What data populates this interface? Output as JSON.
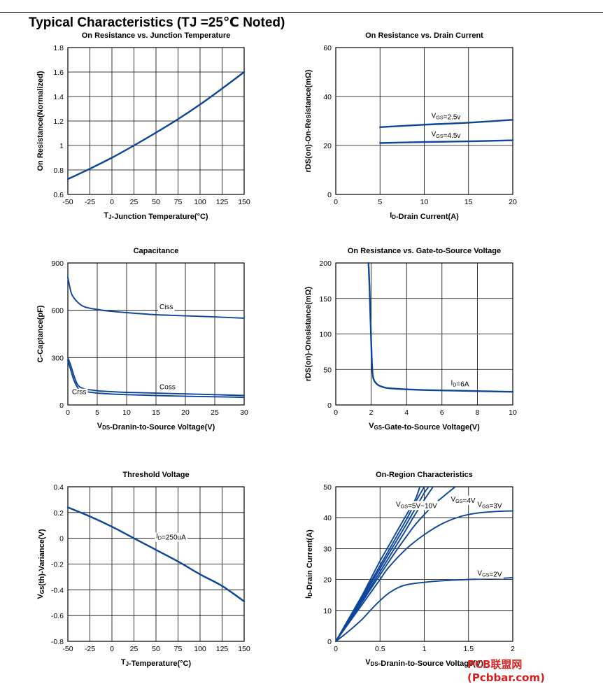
{
  "page": {
    "title": "Typical Characteristics (TJ =25℃ Noted)",
    "watermark": "PCB联盟网 (Pcbbar.com)"
  },
  "colors": {
    "curve": "#0d4599",
    "watermark": "#d62020"
  },
  "chart_data": [
    {
      "id": "c1",
      "type": "line",
      "title": "On Resistance vs. Junction Temperature",
      "xlabel": "TJ-Junction Temperature(°C)",
      "ylabel": "On Resistance(Normalized)",
      "xlim": [
        -50,
        150
      ],
      "ylim": [
        0.6,
        1.8
      ],
      "xticks": [
        -50,
        -25,
        0,
        25,
        50,
        75,
        100,
        125,
        150
      ],
      "xtick_labels": [
        "-50",
        "-25",
        "0",
        "25",
        "50",
        "75",
        "100",
        "125",
        "150"
      ],
      "yticks": [
        0.6,
        0.8,
        1.0,
        1.2,
        1.4,
        1.6,
        1.8
      ],
      "ytick_labels": [
        "0.6",
        "0.8",
        "1",
        "1.2",
        "1.4",
        "1.6",
        "1.8"
      ],
      "grid": true,
      "annotations": [],
      "series": [
        {
          "x": [
            -50,
            -25,
            0,
            25,
            50,
            75,
            100,
            125,
            150
          ],
          "y": [
            0.725,
            0.81,
            0.9,
            1.0,
            1.105,
            1.215,
            1.335,
            1.465,
            1.6
          ]
        }
      ]
    },
    {
      "id": "c2",
      "type": "line",
      "title": "On Resistance vs. Drain Current",
      "xlabel": "ID-Drain Current(A)",
      "ylabel": "rDS(on)-On-Resistance(mΩ)",
      "xlim": [
        0,
        20
      ],
      "ylim": [
        0,
        60
      ],
      "xticks": [
        0,
        5,
        10,
        15,
        20
      ],
      "xtick_labels": [
        "0",
        "5",
        "10",
        "15",
        "20"
      ],
      "yticks": [
        0,
        20,
        40,
        60
      ],
      "ytick_labels": [
        "0",
        "20",
        "40",
        "60"
      ],
      "grid": true,
      "annotations": [
        {
          "text": "VGS=2.5v",
          "x": 10.8,
          "y": 31.3
        },
        {
          "text": "VGS=4.5v",
          "x": 10.8,
          "y": 23.7
        }
      ],
      "series": [
        {
          "x": [
            5,
            10,
            15,
            20
          ],
          "y": [
            27.5,
            28.5,
            29.3,
            30.5
          ]
        },
        {
          "x": [
            5,
            10,
            15,
            20
          ],
          "y": [
            21.0,
            21.4,
            21.7,
            22.1
          ]
        }
      ]
    },
    {
      "id": "c3",
      "type": "line",
      "title": "Capacitance",
      "xlabel": "VDS-Dranin-to-Source Voltage(V)",
      "ylabel": "C-Captance(pF)",
      "xlim": [
        0,
        30
      ],
      "ylim": [
        0,
        900
      ],
      "xticks": [
        0,
        5,
        10,
        15,
        20,
        25,
        30
      ],
      "xtick_labels": [
        "0",
        "5",
        "10",
        "15",
        "20",
        "25",
        "30"
      ],
      "yticks": [
        0,
        300,
        600,
        900
      ],
      "ytick_labels": [
        "0",
        "300",
        "600",
        "900"
      ],
      "grid": true,
      "annotations": [
        {
          "text": "Ciss",
          "x": 15.6,
          "y": 607
        },
        {
          "text": "Coss",
          "x": 15.6,
          "y": 100
        },
        {
          "text": "Crss",
          "x": 0.7,
          "y": 68
        }
      ],
      "series": [
        {
          "x": [
            0,
            0.5,
            1,
            2,
            3,
            5,
            7,
            10,
            15,
            20,
            25,
            30
          ],
          "y": [
            810,
            720,
            680,
            640,
            620,
            605,
            595,
            585,
            572,
            565,
            558,
            550
          ]
        },
        {
          "x": [
            0,
            0.5,
            1,
            1.5,
            2,
            3,
            4,
            5,
            7,
            10,
            15,
            20,
            25,
            30
          ],
          "y": [
            300,
            250,
            190,
            140,
            115,
            100,
            95,
            90,
            85,
            80,
            75,
            70,
            65,
            60
          ]
        },
        {
          "x": [
            0,
            0.5,
            1,
            1.5,
            2,
            3,
            4,
            5,
            7,
            10,
            15,
            20,
            25,
            30
          ],
          "y": [
            280,
            220,
            160,
            120,
            95,
            85,
            80,
            75,
            70,
            65,
            60,
            55,
            52,
            48
          ]
        }
      ]
    },
    {
      "id": "c4",
      "type": "line",
      "title": "On Resistance vs. Gate-to-Source Voltage",
      "xlabel": "VGS-Gate-to-Source Voltage(V)",
      "ylabel": "rDS(on)-Onesistance(mΩ)",
      "xlim": [
        0,
        10
      ],
      "ylim": [
        0,
        200
      ],
      "xticks": [
        0,
        2,
        4,
        6,
        8,
        10
      ],
      "xtick_labels": [
        "0",
        "2",
        "4",
        "6",
        "8",
        "10"
      ],
      "yticks": [
        0,
        50,
        100,
        150,
        200
      ],
      "ytick_labels": [
        "0",
        "50",
        "100",
        "150",
        "200"
      ],
      "grid": true,
      "annotations": [
        {
          "text": "ID=6A",
          "x": 6.5,
          "y": 28
        }
      ],
      "series": [
        {
          "x": [
            1.85,
            1.9,
            1.95,
            2.0,
            2.05,
            2.1,
            2.2,
            2.4,
            2.7,
            3,
            4,
            5,
            6,
            7,
            8,
            9,
            10
          ],
          "y": [
            200,
            170,
            130,
            90,
            55,
            40,
            33,
            28,
            25,
            23.5,
            22,
            21,
            20.5,
            20,
            19.5,
            19,
            18.5
          ]
        }
      ]
    },
    {
      "id": "c5",
      "type": "line",
      "title": "Threshold Voltage",
      "xlabel": "TJ-Temperature(°C)",
      "ylabel": "VGS(th)-Variance(V)",
      "xlim": [
        -50,
        150
      ],
      "ylim": [
        -0.8,
        0.4
      ],
      "xticks": [
        -50,
        -25,
        0,
        25,
        50,
        75,
        100,
        125,
        150
      ],
      "xtick_labels": [
        "-50",
        "-25",
        "0",
        "25",
        "50",
        "75",
        "100",
        "125",
        "150"
      ],
      "yticks": [
        -0.8,
        -0.6,
        -0.4,
        -0.2,
        0,
        0.2,
        0.4
      ],
      "ytick_labels": [
        "-0.8",
        "-0.6",
        "-0.4",
        "-0.2",
        "0",
        "0.2",
        "0.4"
      ],
      "grid": true,
      "annotations": [
        {
          "text": "ID=250uA",
          "x": 50,
          "y": 0.0
        }
      ],
      "series": [
        {
          "x": [
            -50,
            -25,
            0,
            25,
            50,
            75,
            100,
            125,
            150
          ],
          "y": [
            0.24,
            0.17,
            0.09,
            0.0,
            -0.09,
            -0.18,
            -0.28,
            -0.37,
            -0.49
          ]
        }
      ]
    },
    {
      "id": "c6",
      "type": "line",
      "title": "On-Region Characteristics",
      "xlabel": "VDS-Dranin-to-Source Voltage(V)",
      "ylabel": "ID-Drain Current(A)",
      "xlim": [
        0,
        2
      ],
      "ylim": [
        0,
        50
      ],
      "xticks": [
        0,
        0.5,
        1,
        1.5,
        2
      ],
      "xtick_labels": [
        "0",
        "0.5",
        "1",
        "1.5",
        "2"
      ],
      "yticks": [
        0,
        10,
        20,
        30,
        40,
        50
      ],
      "ytick_labels": [
        "0",
        "10",
        "20",
        "30",
        "40",
        "50"
      ],
      "grid": true,
      "annotations": [
        {
          "text": "VGS=5V~10V",
          "x": 0.68,
          "y": 43.6
        },
        {
          "text": "VGS=4V",
          "x": 1.3,
          "y": 45.3
        },
        {
          "text": "VGS=3V",
          "x": 1.6,
          "y": 43.6
        },
        {
          "text": "VGS=2V",
          "x": 1.6,
          "y": 21.4
        }
      ],
      "series": [
        {
          "x": [
            0,
            0.1,
            0.2,
            0.3,
            0.4,
            0.5,
            0.6,
            0.7,
            0.8,
            0.9,
            0.95
          ],
          "y": [
            0,
            5,
            10,
            15,
            20.5,
            26,
            31,
            36,
            41,
            46,
            50
          ]
        },
        {
          "x": [
            0,
            0.1,
            0.2,
            0.3,
            0.4,
            0.5,
            0.6,
            0.7,
            0.8,
            0.9,
            1.0
          ],
          "y": [
            0,
            4.8,
            9.6,
            14.5,
            19.5,
            24.5,
            29.5,
            34.5,
            39.5,
            45,
            50
          ]
        },
        {
          "x": [
            0,
            0.1,
            0.2,
            0.3,
            0.4,
            0.5,
            0.6,
            0.7,
            0.8,
            0.9,
            1.0,
            1.05
          ],
          "y": [
            0,
            4.6,
            9.2,
            14,
            18.8,
            23.6,
            28.4,
            33.2,
            38,
            43,
            48,
            50
          ]
        },
        {
          "x": [
            0,
            0.1,
            0.2,
            0.3,
            0.4,
            0.5,
            0.6,
            0.7,
            0.8,
            0.9,
            1.0,
            1.1
          ],
          "y": [
            0,
            4.4,
            8.8,
            13.3,
            17.9,
            22.5,
            27.1,
            31.7,
            36.4,
            41.2,
            45.8,
            50
          ]
        },
        {
          "x": [
            0,
            0.1,
            0.2,
            0.3,
            0.4,
            0.5,
            0.6,
            0.7,
            0.8,
            0.9,
            1.0,
            1.1,
            1.2,
            1.35
          ],
          "y": [
            0,
            4.2,
            8.5,
            12.8,
            17.2,
            21.5,
            25.8,
            30,
            34,
            37.8,
            41,
            44,
            46.5,
            50
          ]
        },
        {
          "x": [
            0,
            0.1,
            0.2,
            0.3,
            0.4,
            0.5,
            0.6,
            0.8,
            1.0,
            1.2,
            1.4,
            1.6,
            1.8,
            2.0
          ],
          "y": [
            0,
            4,
            8,
            12,
            16,
            20,
            24,
            30,
            34.5,
            38,
            40.3,
            41.5,
            42,
            42.2
          ]
        },
        {
          "x": [
            0,
            0.1,
            0.2,
            0.3,
            0.4,
            0.5,
            0.6,
            0.7,
            0.8,
            1.0,
            1.2,
            1.5,
            1.8,
            2.0
          ],
          "y": [
            0,
            2.2,
            4.6,
            7.2,
            10.3,
            13.2,
            15.6,
            17.3,
            18.3,
            19.1,
            19.6,
            20.0,
            20.3,
            20.6
          ]
        }
      ]
    }
  ]
}
